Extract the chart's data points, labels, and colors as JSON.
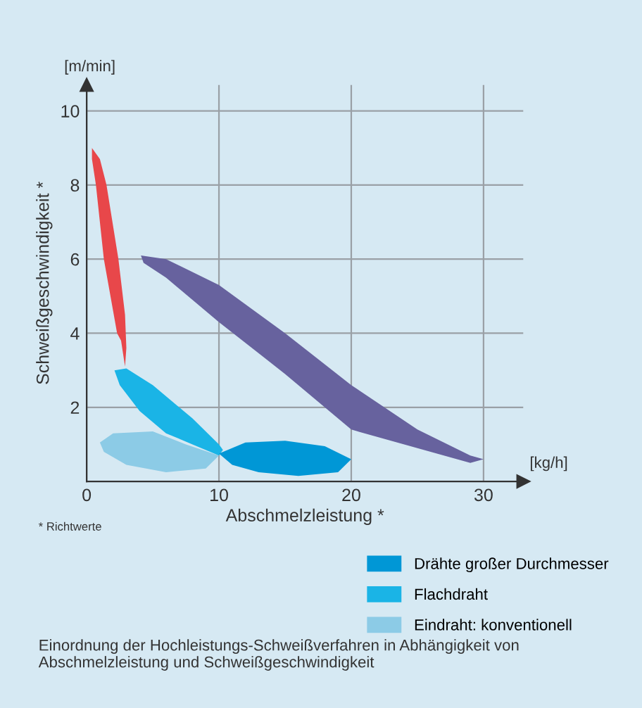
{
  "chart_data": {
    "type": "area",
    "xlabel": "Abschmelzleistung *",
    "ylabel": "Schweißgeschwindigkeit *",
    "annotations": [
      "[m/min]",
      "[kg/h]",
      "* Richtwerte",
      "Einordnung der Hochleistungs-Schweißverfahren in Abhängigkeit von Abschmelzleistung und Schweißgeschwindigkeit"
    ],
    "xlim": [
      0,
      33
    ],
    "ylim": [
      0,
      10.7
    ],
    "xticks": [
      0,
      10,
      20,
      30
    ],
    "yticks": [
      2,
      4,
      6,
      8,
      10
    ],
    "grid": true,
    "legend": "bottom",
    "series": [
      {
        "color": "#e8474a",
        "x": [
          0.4,
          1.0,
          1.5,
          2.4,
          2.9,
          3.0,
          2.9,
          2.6,
          2.3,
          1.3,
          0.7,
          0.4
        ],
        "values": [
          9.0,
          8.7,
          8.0,
          6.0,
          4.5,
          3.6,
          3.1,
          3.8,
          4.0,
          6.0,
          8.0,
          8.7
        ]
      },
      {
        "color": "#67629e",
        "x": [
          4.1,
          6,
          10,
          15,
          20,
          25,
          29,
          30,
          29,
          25,
          20,
          15,
          10,
          6,
          4.3
        ],
        "values": [
          6.1,
          6.0,
          5.3,
          4.0,
          2.6,
          1.4,
          0.7,
          0.6,
          0.5,
          0.9,
          1.4,
          2.9,
          4.3,
          5.5,
          5.9
        ]
      },
      {
        "name": "Drähte großer Durchmesser",
        "color": "#0097d6",
        "x": [
          10,
          12,
          15,
          18,
          20,
          19,
          16,
          13,
          11
        ],
        "values": [
          0.75,
          1.05,
          1.1,
          0.95,
          0.6,
          0.25,
          0.15,
          0.25,
          0.45
        ]
      },
      {
        "name": "Flachdraht",
        "color": "#1ab4e6",
        "x": [
          2.1,
          3,
          5,
          8,
          10,
          10.3,
          10,
          8,
          6,
          4,
          2.5
        ],
        "values": [
          3.0,
          3.05,
          2.6,
          1.7,
          1.0,
          0.85,
          0.7,
          1.0,
          1.3,
          1.9,
          2.6
        ]
      },
      {
        "name": "Eindraht: konventionell",
        "color": "#8ccbe6",
        "x": [
          1,
          2,
          5,
          7.5,
          10,
          9,
          6,
          3,
          1.3
        ],
        "values": [
          1.05,
          1.3,
          1.35,
          1.0,
          0.7,
          0.35,
          0.25,
          0.45,
          0.8
        ]
      }
    ]
  }
}
